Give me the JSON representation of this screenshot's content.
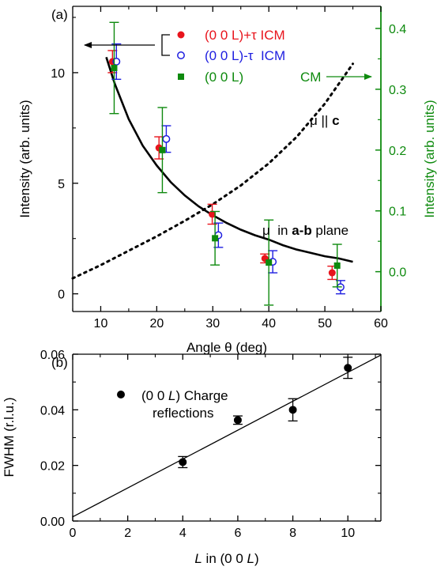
{
  "chart_data": [
    {
      "panel_label": "(a)",
      "type": "scatter",
      "xlabel": "Angle θ (deg)",
      "ylabel": "Intensity (arb. units)",
      "ylabel_right": "Intensity (arb. units)",
      "xlim": [
        5,
        60
      ],
      "ylim": [
        -0.8,
        13
      ],
      "ylim_right": [
        -0.0655,
        0.4364
      ],
      "xticks": [
        10,
        20,
        30,
        40,
        50,
        60
      ],
      "yticks": [
        0,
        5,
        10
      ],
      "yticks_right": [
        0.0,
        0.1,
        0.2,
        0.3,
        0.4
      ],
      "grid": false,
      "legend_position": "top-right",
      "series": [
        {
          "name": "(0 0 L)+τ ICM",
          "color": "#e8141c",
          "marker": "filled-circle",
          "axis": "left",
          "x": [
            12.1,
            20.4,
            29.9,
            39.3,
            51.3
          ],
          "y": [
            10.5,
            6.6,
            3.6,
            1.6,
            0.95
          ],
          "err": [
            0.5,
            0.5,
            0.45,
            0.2,
            0.3
          ],
          "errcolor": "#e8141c"
        },
        {
          "name": "(0 0 L)-τ  ICM",
          "color": "#1e1ee0",
          "marker": "open-circle",
          "axis": "left",
          "x": [
            12.8,
            21.7,
            31.0,
            40.7,
            52.8
          ],
          "y": [
            10.5,
            7.0,
            2.65,
            1.45,
            0.3
          ],
          "err": [
            0.8,
            0.6,
            0.55,
            0.5,
            0.3
          ],
          "errcolor": "#1e1ee0"
        },
        {
          "name": "(0 0 L)",
          "color": "#0e8a0e",
          "marker": "filled-square",
          "axis": "right",
          "x": [
            12.4,
            21.0,
            30.4,
            40.0,
            52.2
          ],
          "y": [
            0.335,
            0.2,
            0.055,
            0.015,
            0.01
          ],
          "err": [
            0.075,
            0.07,
            0.044,
            0.07,
            0.035
          ],
          "errcolor": "#0e8a0e"
        }
      ],
      "curves": [
        {
          "name": "μ in a-b plane",
          "style": "solid",
          "color": "#000000",
          "x": [
            11.0,
            12.5,
            15,
            17.5,
            20,
            22.5,
            25,
            27.5,
            30,
            32.5,
            35,
            37.5,
            40,
            42.5,
            45,
            47.5,
            50,
            52.5,
            55
          ],
          "y": [
            10.7,
            9.5,
            7.9,
            6.7,
            5.8,
            5.05,
            4.45,
            3.95,
            3.55,
            3.2,
            2.9,
            2.65,
            2.45,
            2.2,
            2.0,
            1.85,
            1.7,
            1.6,
            1.45
          ]
        },
        {
          "name": "μ || c",
          "style": "dotted",
          "color": "#000000",
          "x": [
            5,
            10,
            15,
            20,
            25,
            30,
            35,
            40,
            45,
            50,
            55
          ],
          "y": [
            0.7,
            1.3,
            1.95,
            2.6,
            3.3,
            4.05,
            4.9,
            5.9,
            7.1,
            8.6,
            10.4
          ]
        }
      ],
      "legend": [
        {
          "label": "(0 0 L)+τ ICM",
          "color": "#e8141c",
          "marker": "filled-circle"
        },
        {
          "label": "(0 0 L)-τ  ICM",
          "color": "#1e1ee0",
          "marker": "open-circle"
        },
        {
          "label": "(0 0 L)",
          "color": "#0e8a0e",
          "marker": "filled-square"
        }
      ],
      "annotations": {
        "cm_label": "CM",
        "mu_c_prefix": "μ || ",
        "mu_c_bold": "c",
        "mu_ab_prefix": "μ  in ",
        "mu_ab_bold": "a-b",
        "mu_ab_suffix": " plane"
      },
      "colors": {
        "left_axis": "#000000",
        "right_axis": "#0e8a0e"
      }
    },
    {
      "panel_label": "(b)",
      "type": "scatter",
      "xlabel": "L in (0 0 L)",
      "ylabel": "FWHM (r.l.u.)",
      "xlim": [
        0,
        11.2
      ],
      "ylim": [
        0,
        0.06
      ],
      "xticks": [
        0,
        2,
        4,
        6,
        8,
        10
      ],
      "yticks": [
        "0.00",
        "0.02",
        "0.04",
        "0.06"
      ],
      "grid": false,
      "legend_position": "top-left",
      "series": [
        {
          "name": "(0 0 L) Charge reflections",
          "color": "#000000",
          "marker": "filled-circle",
          "x": [
            4,
            6,
            8,
            10
          ],
          "y": [
            0.0212,
            0.0363,
            0.04,
            0.0551
          ],
          "err": [
            0.002,
            0.0015,
            0.004,
            0.0038
          ]
        }
      ],
      "fit_line": {
        "x": [
          0,
          11.2
        ],
        "y": [
          0.0015,
          0.0597
        ]
      },
      "legend": [
        {
          "line1": "(0 0 L) Charge",
          "line2": "reflections"
        }
      ]
    }
  ]
}
